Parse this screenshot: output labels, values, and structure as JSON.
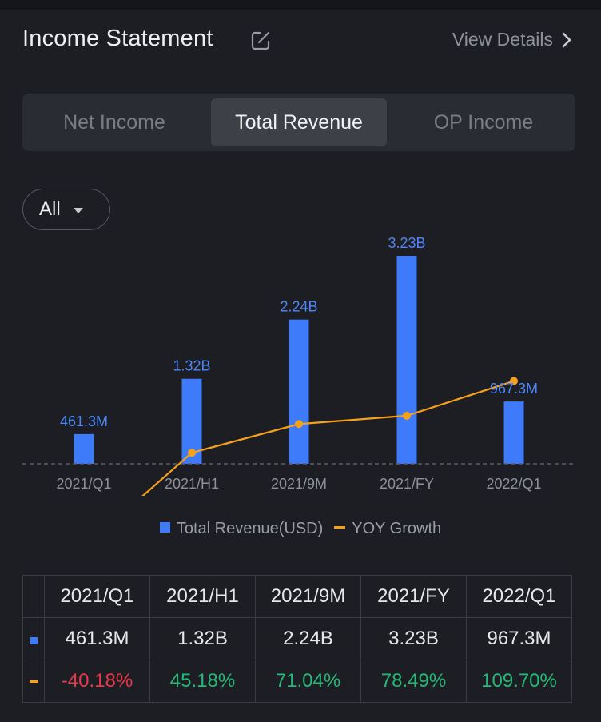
{
  "header": {
    "title": "Income Statement",
    "view_details": "View Details"
  },
  "tabs": [
    {
      "label": "Net Income",
      "active": false
    },
    {
      "label": "Total Revenue",
      "active": true
    },
    {
      "label": "OP Income",
      "active": false
    }
  ],
  "filter": {
    "label": "All"
  },
  "legend": {
    "bar_label": "Total Revenue(USD)",
    "line_label": "YOY Growth"
  },
  "colors": {
    "bar": "#3e7bfa",
    "line": "#f7a11a",
    "negative": "#e9394a",
    "positive": "#26b877"
  },
  "chart_data": {
    "type": "bar",
    "categories": [
      "2021/Q1",
      "2021/H1",
      "2021/9M",
      "2021/FY",
      "2022/Q1"
    ],
    "series": [
      {
        "name": "Total Revenue(USD)",
        "type": "bar",
        "values": [
          461.3,
          1320,
          2240,
          3230,
          967.3
        ],
        "unit": "M",
        "labels": [
          "461.3M",
          "1.32B",
          "2.24B",
          "3.23B",
          "967.3M"
        ]
      },
      {
        "name": "YOY Growth",
        "type": "line",
        "values": [
          -40.18,
          45.18,
          71.04,
          78.49,
          109.7
        ],
        "unit": "%"
      }
    ],
    "legend_position": "bottom"
  },
  "table": {
    "headers": [
      "2021/Q1",
      "2021/H1",
      "2021/9M",
      "2021/FY",
      "2022/Q1"
    ],
    "revenue": [
      "461.3M",
      "1.32B",
      "2.24B",
      "3.23B",
      "967.3M"
    ],
    "growth": [
      "-40.18%",
      "45.18%",
      "71.04%",
      "78.49%",
      "109.70%"
    ]
  }
}
